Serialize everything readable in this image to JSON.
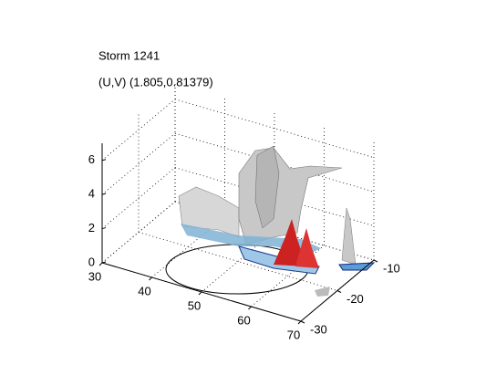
{
  "chart_data": {
    "type": "surface3d",
    "title": "Storm 1241",
    "subtitle": "(U,V) (1.805,0.81379)",
    "xlim": [
      30,
      70
    ],
    "xticks": [
      30,
      40,
      50,
      60,
      70
    ],
    "ylim": [
      -30,
      -10
    ],
    "yticks": [
      -30,
      -20,
      -10
    ],
    "zlim": [
      0,
      7
    ],
    "zticks": [
      0,
      2,
      4,
      6
    ],
    "grid": true
  }
}
